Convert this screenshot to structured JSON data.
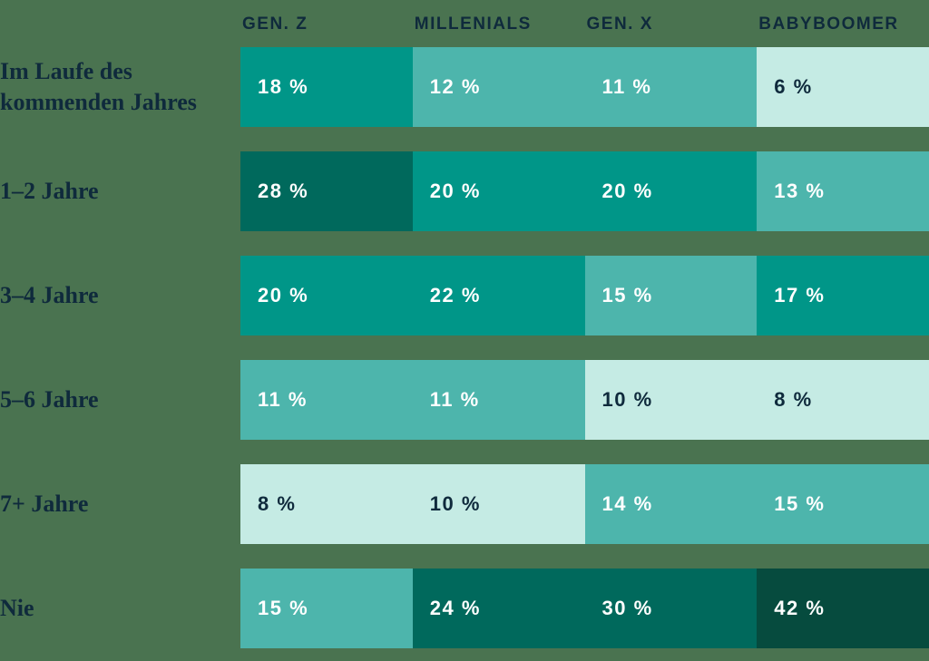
{
  "colors": {
    "background": "#4A7350",
    "text_dark": "#0F2A3C",
    "cell_text_light": "#FFFFFF",
    "scale": {
      "mint": "#C5EBE4",
      "light": "#4DB5AC",
      "medium": "#009688",
      "dark": "#00695C",
      "darkest": "#064B3E"
    }
  },
  "chart_data": {
    "type": "heatmap",
    "unit": "%",
    "legend_position": "none",
    "columns": [
      {
        "label": "GEN. Z"
      },
      {
        "label": "MILLENIALS"
      },
      {
        "label": "GEN. X"
      },
      {
        "label": "BABYBOOMER"
      }
    ],
    "rows": [
      {
        "label": "Im Laufe des\nkommenden Jahres",
        "values": [
          18,
          12,
          11,
          6
        ],
        "cells": [
          {
            "value": 18,
            "display": "18 %",
            "tone": "medium"
          },
          {
            "value": 12,
            "display": "12 %",
            "tone": "light"
          },
          {
            "value": 11,
            "display": "11 %",
            "tone": "light"
          },
          {
            "value": 6,
            "display": "6 %",
            "tone": "mint"
          }
        ]
      },
      {
        "label": "1–2 Jahre",
        "values": [
          28,
          20,
          20,
          13
        ],
        "cells": [
          {
            "value": 28,
            "display": "28 %",
            "tone": "dark"
          },
          {
            "value": 20,
            "display": "20 %",
            "tone": "medium"
          },
          {
            "value": 20,
            "display": "20 %",
            "tone": "medium"
          },
          {
            "value": 13,
            "display": "13 %",
            "tone": "light"
          }
        ]
      },
      {
        "label": "3–4 Jahre",
        "values": [
          20,
          22,
          15,
          17
        ],
        "cells": [
          {
            "value": 20,
            "display": "20 %",
            "tone": "medium"
          },
          {
            "value": 22,
            "display": "22 %",
            "tone": "medium"
          },
          {
            "value": 15,
            "display": "15 %",
            "tone": "light"
          },
          {
            "value": 17,
            "display": "17 %",
            "tone": "medium"
          }
        ]
      },
      {
        "label": "5–6 Jahre",
        "values": [
          11,
          11,
          10,
          8
        ],
        "cells": [
          {
            "value": 11,
            "display": "11 %",
            "tone": "light"
          },
          {
            "value": 11,
            "display": "11 %",
            "tone": "light"
          },
          {
            "value": 10,
            "display": "10 %",
            "tone": "mint"
          },
          {
            "value": 8,
            "display": "8 %",
            "tone": "mint"
          }
        ]
      },
      {
        "label": "7+ Jahre",
        "values": [
          8,
          10,
          14,
          15
        ],
        "cells": [
          {
            "value": 8,
            "display": "8 %",
            "tone": "mint"
          },
          {
            "value": 10,
            "display": "10 %",
            "tone": "mint"
          },
          {
            "value": 14,
            "display": "14 %",
            "tone": "light"
          },
          {
            "value": 15,
            "display": "15 %",
            "tone": "light"
          }
        ]
      },
      {
        "label": "Nie",
        "values": [
          15,
          24,
          30,
          42
        ],
        "cells": [
          {
            "value": 15,
            "display": "15 %",
            "tone": "light"
          },
          {
            "value": 24,
            "display": "24 %",
            "tone": "dark"
          },
          {
            "value": 30,
            "display": "30 %",
            "tone": "dark"
          },
          {
            "value": 42,
            "display": "42 %",
            "tone": "darkest"
          }
        ]
      }
    ]
  }
}
